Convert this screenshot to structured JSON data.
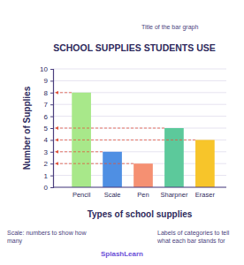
{
  "chart_data": {
    "type": "bar",
    "title": "SCHOOL SUPPLIES STUDENTS USE",
    "x_label": "Types of school supplies",
    "y_label": "Number of Supplies",
    "categories": [
      "Pencil",
      "Scale",
      "Pen",
      "Sharpner",
      "Eraser"
    ],
    "values": [
      8,
      3,
      2,
      5,
      4
    ],
    "colors": [
      "#a8e88a",
      "#4f8fe3",
      "#f59072",
      "#5cc99b",
      "#f7c52a"
    ],
    "ylim": [
      0,
      10
    ],
    "yticks": [
      0,
      1,
      2,
      3,
      4,
      5,
      6,
      7,
      8,
      9,
      10
    ],
    "grid": true,
    "annotations": [
      "Title of the bar graph",
      "Scale: numbers to show how many",
      "Labels of categories to tell what each bar stands for",
      "SplashLearn"
    ]
  }
}
